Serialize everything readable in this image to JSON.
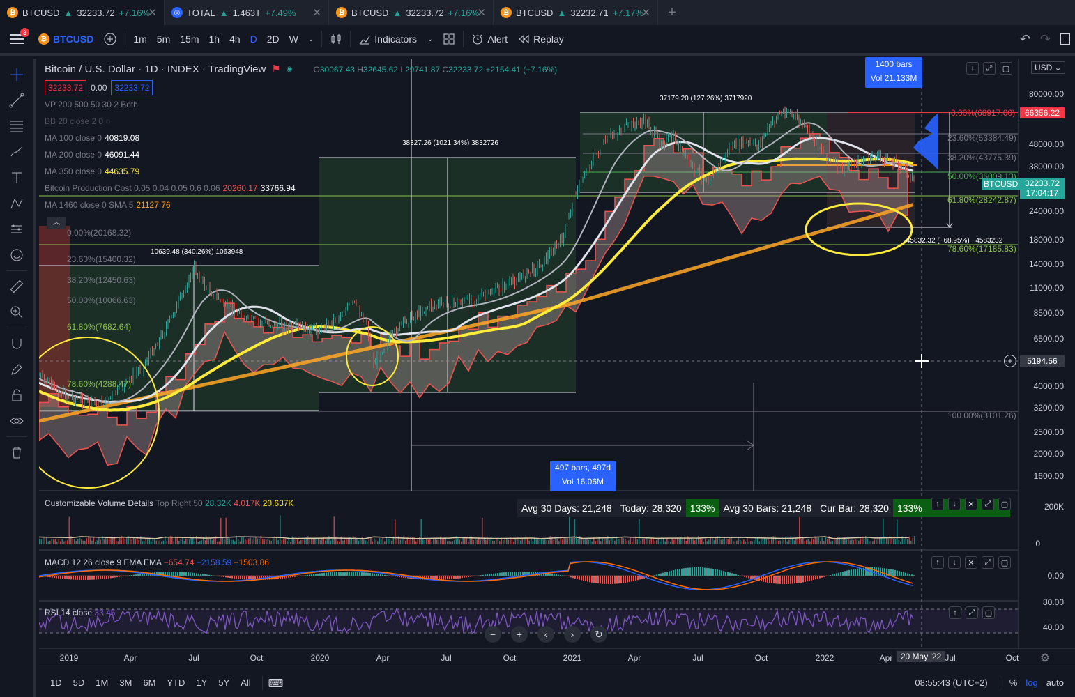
{
  "tabs": [
    {
      "symbol": "BTCUSD",
      "price": "32233.72",
      "change": "+7.16%",
      "icon_color": "#f7931a",
      "active": true
    },
    {
      "symbol": "TOTAL",
      "price": "1.463T",
      "change": "+7.49%",
      "icon_color": "#2962ff",
      "active": false
    },
    {
      "symbol": "BTCUSD",
      "price": "32233.72",
      "change": "+7.16%",
      "icon_color": "#f7931a",
      "active": false
    },
    {
      "symbol": "BTCUSD",
      "price": "32232.71",
      "change": "+7.17%",
      "icon_color": "#f7931a",
      "active": false
    }
  ],
  "toolbar": {
    "notifications": "3",
    "symbol": "BTCUSD",
    "intervals": [
      "1m",
      "5m",
      "15m",
      "1h",
      "4h",
      "D",
      "2D",
      "W"
    ],
    "active_interval": "D",
    "indicators_label": "Indicators",
    "alert_label": "Alert",
    "replay_label": "Replay"
  },
  "legend": {
    "title": "Bitcoin / U.S. Dollar · 1D · INDEX · TradingView",
    "ohlc": {
      "o": "30067.43",
      "h": "32645.62",
      "l": "29741.87",
      "c": "32233.72",
      "chg": "+2154.41 (+7.16%)"
    },
    "bid": "32233.72",
    "spread": "0.00",
    "ask": "32233.72",
    "indicators": [
      {
        "name": "VP 200 500 50 30 2 Both",
        "value": "",
        "color": "#ffffff"
      },
      {
        "name": "BB 20 close 2 0",
        "value": "",
        "color": "#ffffff"
      },
      {
        "name": "MA 100 close 0",
        "value": "40819.08",
        "color": "#ffffff"
      },
      {
        "name": "MA 200 close 0",
        "value": "46091.44",
        "color": "#ffffff"
      },
      {
        "name": "MA 350 close 0",
        "value": "44635.79",
        "color": "#ffeb3b"
      },
      {
        "name": "Bitcoin Production Cost 0.05 0.04 0.05 0.6 0.06",
        "value": "20260.17",
        "value2": "33766.94",
        "color": "#ef5350"
      },
      {
        "name": "MA 1460 close 0 SMA 5",
        "value": "21127.76",
        "color": "#ffa726"
      }
    ]
  },
  "annotations": {
    "range1": "10639.48 (340.26%) 1063948",
    "range2": "38327.26 (1021.34%) 3832726",
    "range3": "37179.20 (127.26%) 3717920",
    "range4": "−45832.32 (−68.95%) −4583232",
    "callout_top_1": "1400 bars",
    "callout_top_2": "Vol 21.133M",
    "callout_bottom_1": "497 bars, 497d",
    "callout_bottom_2": "Vol 16.06M"
  },
  "fib_left": [
    "0.00%(20168.32)",
    "23.60%(15400.32)",
    "38.20%(12450.63)",
    "50.00%(10066.63)",
    "61.80%(7682.64)",
    "78.60%(4288.47)"
  ],
  "fib_right": [
    "0.00%(68917.00)",
    "23.60%(53384.49)",
    "38.20%(43775.39)",
    "50.00%(36009.13)",
    "61.80%(28242.87)",
    "78.60%(17185.83)",
    "100.00%(3101.26)"
  ],
  "price_scale": {
    "labels": [
      "80000.00",
      "48000.00",
      "38000.00",
      "24000.00",
      "18000.00",
      "14000.00",
      "11000.00",
      "8500.00",
      "6500.00",
      "5194.56",
      "4000.00",
      "3200.00",
      "2500.00",
      "2000.00",
      "1600.00"
    ],
    "currency": "USD",
    "high_tag": "66356.22",
    "last_tag": "32233.72",
    "countdown": "17:04:17",
    "symbol_tag": "BTCUSD",
    "crosshair_tag": "5194.56"
  },
  "volume_pane": {
    "label": "Customizable Volume Details",
    "sub": "Top Right 50",
    "v1": "28.32K",
    "v2": "4.017K",
    "v3": "20.637K",
    "avg30days": "Avg 30 Days: 21,248",
    "today": "Today: 28,320",
    "pct1": "133%",
    "avg30bars": "Avg 30 Bars: 21,248",
    "curbar": "Cur Bar: 28,320",
    "pct2": "133%",
    "scale_top": "200K",
    "scale_zero": "0"
  },
  "macd_pane": {
    "label": "MACD 12 26 close 9 EMA EMA",
    "v1": "−654.74",
    "v2": "−2158.59",
    "v3": "−1503.86",
    "scale": "0.00"
  },
  "rsi_pane": {
    "label": "RSI 14 close",
    "value": "33.45",
    "scale_top": "80.00",
    "scale_mid": "40.00"
  },
  "time_axis": [
    "2019",
    "Apr",
    "Jul",
    "Oct",
    "2020",
    "Apr",
    "Jul",
    "Oct",
    "2021",
    "Apr",
    "Jul",
    "Oct",
    "2022",
    "Apr",
    "20 May '22",
    "Jul",
    "Oct"
  ],
  "bottom_bar": {
    "ranges": [
      "1D",
      "5D",
      "1M",
      "3M",
      "6M",
      "YTD",
      "1Y",
      "5Y",
      "All"
    ],
    "clock": "08:55:43 (UTC+2)",
    "pct": "%",
    "log": "log",
    "auto": "auto"
  },
  "colors": {
    "up": "#26a69a",
    "down": "#ef5350",
    "accent": "#2962ff",
    "ma350": "#ffeb3b",
    "ma1460": "#ffa726"
  }
}
